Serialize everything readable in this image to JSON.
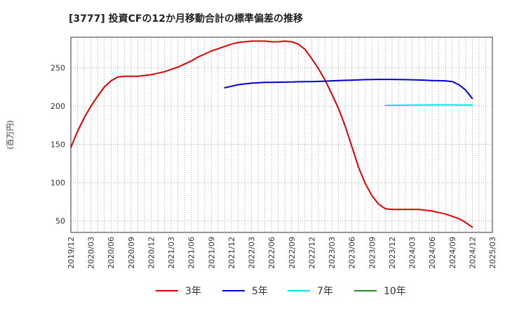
{
  "chart_data": {
    "type": "line",
    "title": "[3777]  投資CFの12か月移動合計の標準偏差の推移",
    "ylabel": "(百万円)",
    "xlabel": "",
    "ylim": [
      35,
      290
    ],
    "yticks": [
      50,
      100,
      150,
      200,
      250
    ],
    "xlim": [
      "2019-12",
      "2025-03"
    ],
    "xticks": [
      "2019/12",
      "2020/03",
      "2020/06",
      "2020/09",
      "2020/12",
      "2021/03",
      "2021/06",
      "2021/09",
      "2021/12",
      "2022/03",
      "2022/06",
      "2022/09",
      "2022/12",
      "2023/03",
      "2023/06",
      "2023/09",
      "2023/12",
      "2024/03",
      "2024/06",
      "2024/09",
      "2024/12",
      "2025/03"
    ],
    "grid": true,
    "legend_position": "bottom",
    "series": [
      {
        "name": "3年",
        "color": "#dd0000",
        "x": [
          "2019-12",
          "2020-01",
          "2020-02",
          "2020-03",
          "2020-04",
          "2020-05",
          "2020-06",
          "2020-07",
          "2020-08",
          "2020-09",
          "2020-10",
          "2020-11",
          "2020-12",
          "2021-01",
          "2021-02",
          "2021-03",
          "2021-04",
          "2021-05",
          "2021-06",
          "2021-07",
          "2021-08",
          "2021-09",
          "2021-10",
          "2021-11",
          "2021-12",
          "2022-01",
          "2022-02",
          "2022-03",
          "2022-04",
          "2022-05",
          "2022-06",
          "2022-07",
          "2022-08",
          "2022-09",
          "2022-10",
          "2022-11",
          "2022-12",
          "2023-01",
          "2023-02",
          "2023-03",
          "2023-04",
          "2023-05",
          "2023-06",
          "2023-07",
          "2023-08",
          "2023-09",
          "2023-10",
          "2023-11",
          "2023-12",
          "2024-01",
          "2024-02",
          "2024-03",
          "2024-04",
          "2024-05",
          "2024-06",
          "2024-07",
          "2024-08",
          "2024-09",
          "2024-10",
          "2024-11",
          "2024-12"
        ],
        "values": [
          146,
          167,
          185,
          200,
          213,
          225,
          233,
          238,
          239,
          239,
          239,
          240,
          241,
          243,
          245,
          248,
          251,
          255,
          259,
          264,
          268,
          272,
          275,
          278,
          281,
          283,
          284,
          285,
          285,
          285,
          284,
          284,
          285,
          284,
          281,
          274,
          262,
          249,
          234,
          216,
          197,
          174,
          147,
          120,
          99,
          83,
          72,
          66,
          65,
          65,
          65,
          65,
          65,
          64,
          63,
          61,
          59,
          56,
          53,
          48,
          42
        ]
      },
      {
        "name": "5年",
        "color": "#0000cc",
        "x": [
          "2021-11",
          "2021-12",
          "2022-01",
          "2022-02",
          "2022-03",
          "2022-04",
          "2022-05",
          "2022-06",
          "2022-07",
          "2022-08",
          "2022-09",
          "2022-10",
          "2022-11",
          "2022-12",
          "2023-01",
          "2023-02",
          "2023-03",
          "2023-04",
          "2023-05",
          "2023-06",
          "2023-07",
          "2023-08",
          "2023-09",
          "2023-10",
          "2023-11",
          "2023-12",
          "2024-01",
          "2024-02",
          "2024-03",
          "2024-04",
          "2024-05",
          "2024-06",
          "2024-07",
          "2024-08",
          "2024-09",
          "2024-10",
          "2024-11",
          "2024-12"
        ],
        "values": [
          224,
          226,
          228,
          229,
          230,
          230.5,
          231,
          231,
          231.2,
          231.4,
          231.6,
          231.8,
          232,
          232,
          232.3,
          232.6,
          233,
          233.3,
          233.7,
          234,
          234.3,
          234.6,
          234.8,
          234.9,
          234.9,
          234.9,
          234.8,
          234.6,
          234.4,
          234.1,
          233.8,
          233.4,
          233.2,
          233,
          232,
          228,
          221,
          210
        ]
      },
      {
        "name": "7年",
        "color": "#00e5ee",
        "x": [
          "2023-11",
          "2023-12",
          "2024-01",
          "2024-02",
          "2024-03",
          "2024-04",
          "2024-05",
          "2024-06",
          "2024-07",
          "2024-08",
          "2024-09",
          "2024-10",
          "2024-11",
          "2024-12"
        ],
        "values": [
          201,
          201,
          201.2,
          201.3,
          201.4,
          201.5,
          201.5,
          201.6,
          201.6,
          201.6,
          201.6,
          201.5,
          201.5,
          201.4
        ]
      },
      {
        "name": "10年",
        "color": "#228b22",
        "x": [],
        "values": []
      }
    ]
  }
}
